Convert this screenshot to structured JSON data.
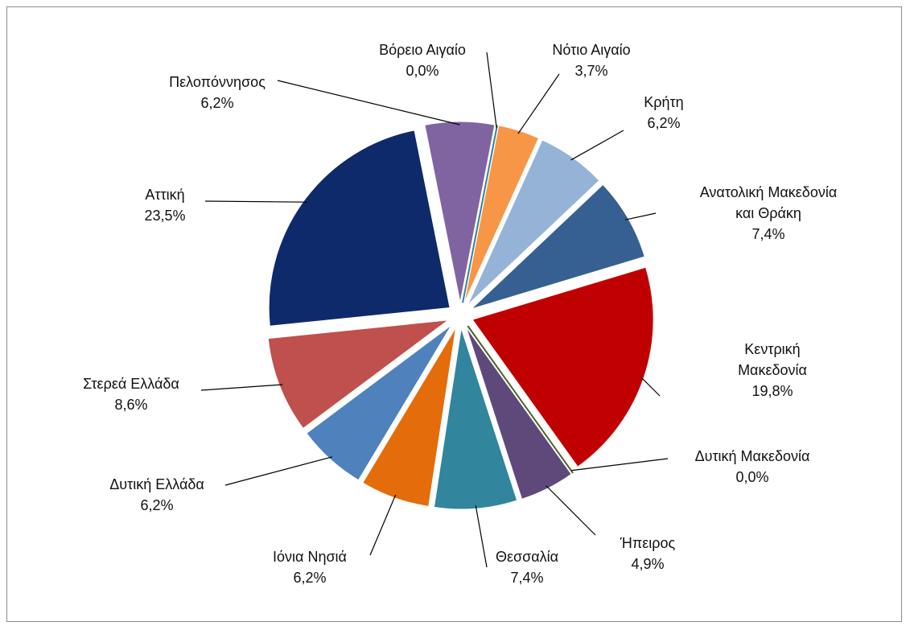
{
  "chart_data": {
    "type": "pie",
    "categories": [
      "Βόρειο Αιγαίο",
      "Νότιο Αιγαίο",
      "Κρήτη",
      "Ανατολική Μακεδονία και Θράκη",
      "Κεντρική Μακεδονία",
      "Δυτική Μακεδονία",
      "Ήπειρος",
      "Θεσσαλία",
      "Ιόνια Νησιά",
      "Δυτική Ελλάδα",
      "Στερεά Ελλάδα",
      "Αττική",
      "Πελοπόννησος"
    ],
    "values": [
      0.0,
      3.7,
      6.2,
      7.4,
      19.8,
      0.0,
      4.9,
      7.4,
      6.2,
      6.2,
      8.6,
      23.5,
      6.2
    ],
    "value_labels": [
      "0,0%",
      "3,7%",
      "6,2%",
      "7,4%",
      "19,8%",
      "0,0%",
      "4,9%",
      "7,4%",
      "6,2%",
      "6,2%",
      "8,6%",
      "23,5%",
      "6,2%"
    ],
    "colors": [
      "#31859c",
      "#f79646",
      "#95b3d7",
      "#366092",
      "#c00000",
      "#4f6228",
      "#5f497a",
      "#31859c",
      "#e46c0a",
      "#4f81bd",
      "#c0504d",
      "#0f2a6b",
      "#8064a2"
    ]
  }
}
